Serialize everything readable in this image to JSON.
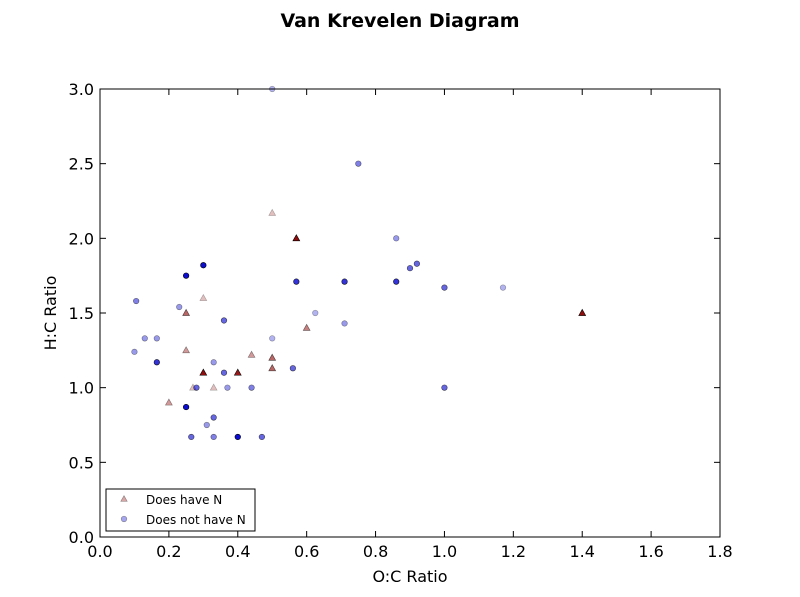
{
  "chart_data": {
    "type": "scatter",
    "title": "Van Krevelen Diagram",
    "xlabel": "O:C Ratio",
    "ylabel": "H:C Ratio",
    "xlim": [
      0.0,
      1.8
    ],
    "ylim": [
      0.0,
      3.0
    ],
    "xticks": [
      "0.0",
      "0.2",
      "0.4",
      "0.6",
      "0.8",
      "1.0",
      "1.2",
      "1.4",
      "1.6",
      "1.8"
    ],
    "yticks": [
      "0.0",
      "0.5",
      "1.0",
      "1.5",
      "2.0",
      "2.5",
      "3.0"
    ],
    "grid": false,
    "legend_position": "lower-left",
    "series": [
      {
        "name": "Does have N",
        "marker": "triangle",
        "color": "#8b0000",
        "points": [
          {
            "x": 0.2,
            "y": 0.9,
            "a": 0.4
          },
          {
            "x": 0.25,
            "y": 1.25,
            "a": 0.4
          },
          {
            "x": 0.25,
            "y": 1.5,
            "a": 0.6
          },
          {
            "x": 0.27,
            "y": 1.0,
            "a": 0.25
          },
          {
            "x": 0.3,
            "y": 1.1,
            "a": 0.95
          },
          {
            "x": 0.3,
            "y": 1.6,
            "a": 0.25
          },
          {
            "x": 0.33,
            "y": 1.0,
            "a": 0.25
          },
          {
            "x": 0.4,
            "y": 1.1,
            "a": 0.9
          },
          {
            "x": 0.44,
            "y": 1.22,
            "a": 0.4
          },
          {
            "x": 0.5,
            "y": 1.2,
            "a": 0.6
          },
          {
            "x": 0.5,
            "y": 1.13,
            "a": 0.6
          },
          {
            "x": 0.5,
            "y": 2.17,
            "a": 0.25
          },
          {
            "x": 0.57,
            "y": 2.0,
            "a": 0.95
          },
          {
            "x": 0.6,
            "y": 1.4,
            "a": 0.5
          },
          {
            "x": 1.4,
            "y": 1.5,
            "a": 0.95
          }
        ]
      },
      {
        "name": "Does not have N",
        "marker": "circle",
        "color": "#0000cd",
        "points": [
          {
            "x": 0.1,
            "y": 1.24,
            "a": 0.4
          },
          {
            "x": 0.105,
            "y": 1.58,
            "a": 0.5
          },
          {
            "x": 0.13,
            "y": 1.33,
            "a": 0.4
          },
          {
            "x": 0.165,
            "y": 1.33,
            "a": 0.4
          },
          {
            "x": 0.165,
            "y": 1.17,
            "a": 0.8
          },
          {
            "x": 0.23,
            "y": 1.54,
            "a": 0.4
          },
          {
            "x": 0.25,
            "y": 0.87,
            "a": 0.95
          },
          {
            "x": 0.25,
            "y": 1.75,
            "a": 0.95
          },
          {
            "x": 0.265,
            "y": 0.67,
            "a": 0.6
          },
          {
            "x": 0.28,
            "y": 1.0,
            "a": 0.6
          },
          {
            "x": 0.3,
            "y": 1.82,
            "a": 0.95
          },
          {
            "x": 0.31,
            "y": 0.75,
            "a": 0.4
          },
          {
            "x": 0.33,
            "y": 0.67,
            "a": 0.5
          },
          {
            "x": 0.33,
            "y": 0.8,
            "a": 0.6
          },
          {
            "x": 0.33,
            "y": 1.17,
            "a": 0.4
          },
          {
            "x": 0.36,
            "y": 1.1,
            "a": 0.6
          },
          {
            "x": 0.36,
            "y": 1.45,
            "a": 0.6
          },
          {
            "x": 0.37,
            "y": 1.0,
            "a": 0.4
          },
          {
            "x": 0.4,
            "y": 0.67,
            "a": 0.95
          },
          {
            "x": 0.44,
            "y": 1.0,
            "a": 0.5
          },
          {
            "x": 0.47,
            "y": 0.67,
            "a": 0.6
          },
          {
            "x": 0.5,
            "y": 1.33,
            "a": 0.3
          },
          {
            "x": 0.5,
            "y": 3.0,
            "a": 0.3
          },
          {
            "x": 0.56,
            "y": 1.13,
            "a": 0.6
          },
          {
            "x": 0.57,
            "y": 1.71,
            "a": 0.8
          },
          {
            "x": 0.625,
            "y": 1.5,
            "a": 0.3
          },
          {
            "x": 0.71,
            "y": 1.43,
            "a": 0.4
          },
          {
            "x": 0.71,
            "y": 1.71,
            "a": 0.8
          },
          {
            "x": 0.75,
            "y": 2.5,
            "a": 0.5
          },
          {
            "x": 0.86,
            "y": 1.71,
            "a": 0.8
          },
          {
            "x": 0.86,
            "y": 2.0,
            "a": 0.4
          },
          {
            "x": 0.9,
            "y": 1.8,
            "a": 0.6
          },
          {
            "x": 0.92,
            "y": 1.83,
            "a": 0.6
          },
          {
            "x": 1.0,
            "y": 1.0,
            "a": 0.6
          },
          {
            "x": 1.0,
            "y": 1.67,
            "a": 0.6
          },
          {
            "x": 1.17,
            "y": 1.67,
            "a": 0.3
          }
        ]
      }
    ]
  }
}
